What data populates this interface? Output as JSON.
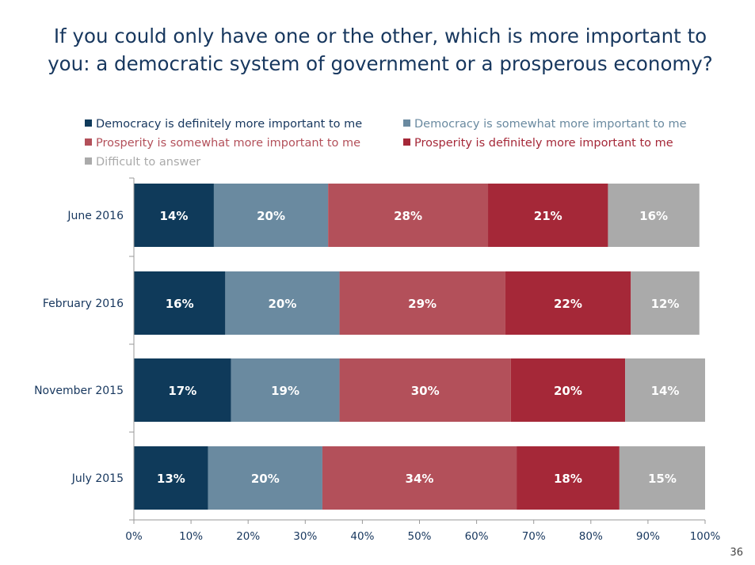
{
  "title": "If you could only have one or the other, which is more important to you: a democratic system of government or a prosperous economy?",
  "page_number": "36",
  "colors": {
    "democracy_definitely": "#0f3a5a",
    "democracy_somewhat": "#6a8aa0",
    "prosperity_somewhat": "#b3505a",
    "prosperity_definitely": "#a52838",
    "difficult": "#aaaaaa",
    "axis_text": "#17375e"
  },
  "chart_data": {
    "type": "bar",
    "orientation": "horizontal",
    "stacked": true,
    "title": "If you could only have one or the other, which is more important to you: a democratic system of government or a prosperous economy?",
    "categories": [
      "June 2016",
      "February 2016",
      "November 2015",
      "July 2015"
    ],
    "series": [
      {
        "name": "Democracy is definitely more important to me",
        "color": "#0f3a5a",
        "values": [
          14,
          16,
          17,
          13
        ],
        "labels": [
          "14%",
          "16%",
          "17%",
          "13%"
        ]
      },
      {
        "name": "Democracy is somewhat more important to me",
        "color": "#6a8aa0",
        "values": [
          20,
          20,
          19,
          20
        ],
        "labels": [
          "20%",
          "20%",
          "19%",
          "20%"
        ]
      },
      {
        "name": "Prosperity is somewhat more important to me",
        "color": "#b3505a",
        "values": [
          28,
          29,
          30,
          34
        ],
        "labels": [
          "28%",
          "29%",
          "30%",
          "34%"
        ]
      },
      {
        "name": "Prosperity is definitely more important to me",
        "color": "#a52838",
        "values": [
          21,
          22,
          20,
          18
        ],
        "labels": [
          "21%",
          "22%",
          "20%",
          "18%"
        ]
      },
      {
        "name": "Difficult to answer",
        "color": "#aaaaaa",
        "values": [
          16,
          12,
          14,
          15
        ],
        "labels": [
          "16%",
          "12%",
          "14%",
          "15%"
        ]
      }
    ],
    "xlim": [
      0,
      100
    ],
    "xticks": [
      "0%",
      "10%",
      "20%",
      "30%",
      "40%",
      "50%",
      "60%",
      "70%",
      "80%",
      "90%",
      "100%"
    ],
    "legend_position": "top",
    "grid": false
  }
}
